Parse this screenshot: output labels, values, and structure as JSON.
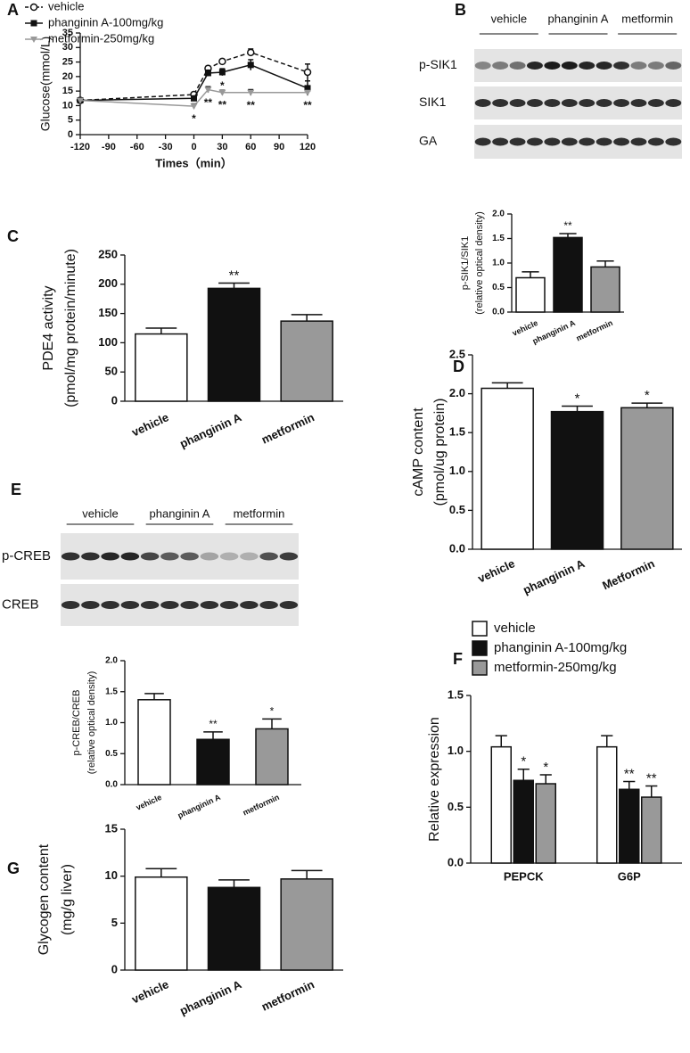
{
  "chart_data": [
    {
      "type": "line",
      "label": "A",
      "ylabel": [
        "Glucose(mmol/L)"
      ],
      "xlabel": "Times（min）",
      "x": [
        -120,
        0,
        15,
        30,
        60,
        120
      ],
      "xlim": [
        -120,
        120
      ],
      "xticks": [
        -120,
        -90,
        -60,
        -30,
        0,
        30,
        60,
        90,
        120
      ],
      "ylim": [
        0,
        35
      ],
      "yticks": [
        0,
        5,
        10,
        15,
        20,
        25,
        30,
        35
      ],
      "series": [
        {
          "name": "vehicle",
          "color": "#111111",
          "marker": "open-circle",
          "dashed": true,
          "values": [
            11.8,
            13.8,
            22.8,
            25.2,
            28.3,
            21.5
          ],
          "errors": [
            0.5,
            0.5,
            0.8,
            0.6,
            1.2,
            2.8
          ],
          "significance": [
            null,
            null,
            null,
            null,
            null,
            null
          ]
        },
        {
          "name": "phanginin A-100mg/kg",
          "color": "#111111",
          "marker": "square",
          "dashed": false,
          "values": [
            11.8,
            12.5,
            21.2,
            21.5,
            24.0,
            16.0
          ],
          "errors": [
            0.5,
            0.5,
            1.0,
            1.2,
            1.8,
            2.5
          ],
          "significance": [
            null,
            null,
            null,
            "*",
            null,
            null
          ]
        },
        {
          "name": "metformin-250mg/kg",
          "color": "#999999",
          "marker": "triangle-down",
          "dashed": false,
          "values": [
            11.8,
            9.8,
            15.5,
            14.5,
            14.5,
            14.5
          ],
          "errors": [
            0.5,
            0.8,
            1.0,
            0.8,
            1.0,
            1.0
          ],
          "significance": [
            null,
            "*",
            "**",
            "**",
            "**",
            "**"
          ]
        }
      ]
    },
    {
      "type": "bar",
      "ylabel": [
        "p-SIK1/SIK1",
        "(relative optical density)"
      ],
      "categories": [
        "vehicle",
        "phanginin A",
        "metformin"
      ],
      "values": [
        0.7,
        1.52,
        0.92
      ],
      "errors": [
        0.12,
        0.08,
        0.12
      ],
      "colors": [
        "#ffffff",
        "#111111",
        "#999999"
      ],
      "significance": [
        null,
        "**",
        null
      ],
      "ylim": [
        0,
        2
      ],
      "yticks": [
        {
          "value": 0,
          "label": "0.0"
        },
        0.5,
        {
          "value": 1,
          "label": "1.0"
        },
        1.5,
        {
          "value": 2,
          "label": "2.0"
        }
      ]
    },
    {
      "type": "bar",
      "label": "C",
      "ylabel": [
        "PDE4 activity",
        "(pmol/mg protein/minute)"
      ],
      "categories": [
        "vehicle",
        "phanginin A",
        "metformin"
      ],
      "values": [
        115,
        193,
        137
      ],
      "errors": [
        10,
        9,
        11
      ],
      "colors": [
        "#ffffff",
        "#111111",
        "#999999"
      ],
      "significance": [
        null,
        "**",
        null
      ],
      "ylim": [
        0,
        250
      ],
      "yticks": [
        0,
        50,
        100,
        150,
        200,
        250
      ]
    },
    {
      "type": "bar",
      "label": "D",
      "ylabel": [
        "cAMP content",
        "(pmol/ug protein)"
      ],
      "categories": [
        "vehicle",
        "phanginin A",
        "Metformin"
      ],
      "values": [
        2.07,
        1.77,
        1.82
      ],
      "errors": [
        0.07,
        0.07,
        0.06
      ],
      "colors": [
        "#ffffff",
        "#111111",
        "#999999"
      ],
      "significance": [
        null,
        "*",
        "*"
      ],
      "ylim": [
        0,
        2.5
      ],
      "yticks": [
        {
          "value": 0,
          "label": "0.0"
        },
        0.5,
        {
          "value": 1,
          "label": "1.0"
        },
        1.5,
        {
          "value": 2,
          "label": "2.0"
        },
        2.5
      ]
    },
    {
      "type": "bar",
      "ylabel": [
        "p-CREB/CREB",
        "(relative optical density)"
      ],
      "categories": [
        "vehicle",
        "phanginin A",
        "metformin"
      ],
      "values": [
        1.37,
        0.73,
        0.9
      ],
      "errors": [
        0.1,
        0.12,
        0.16
      ],
      "colors": [
        "#ffffff",
        "#111111",
        "#999999"
      ],
      "significance": [
        null,
        "**",
        "*"
      ],
      "ylim": [
        0,
        2
      ],
      "yticks": [
        {
          "value": 0,
          "label": "0.0"
        },
        0.5,
        {
          "value": 1,
          "label": "1.0"
        },
        1.5,
        {
          "value": 2,
          "label": "2.0"
        }
      ]
    },
    {
      "type": "bar",
      "label": "F",
      "ylabel": [
        "Relative expression"
      ],
      "categories": [
        "PEPCK",
        "G6P"
      ],
      "series": [
        {
          "name": "vehicle",
          "color": "#ffffff",
          "values": [
            1.04,
            1.04
          ],
          "errors": [
            0.1,
            0.1
          ],
          "significance": [
            null,
            null
          ]
        },
        {
          "name": "phanginin A-100mg/kg",
          "color": "#111111",
          "values": [
            0.74,
            0.66
          ],
          "errors": [
            0.1,
            0.07
          ],
          "significance": [
            "*",
            "**"
          ]
        },
        {
          "name": "metformin-250mg/kg",
          "color": "#999999",
          "values": [
            0.71,
            0.59
          ],
          "errors": [
            0.08,
            0.1
          ],
          "significance": [
            "*",
            "**"
          ]
        }
      ],
      "ylim": [
        0,
        1.5
      ],
      "yticks": [
        {
          "value": 0,
          "label": "0.0"
        },
        0.5,
        {
          "value": 1,
          "label": "1.0"
        },
        1.5
      ]
    },
    {
      "type": "bar",
      "label": "G",
      "ylabel": [
        "Glycogen content",
        "(mg/g liver)"
      ],
      "categories": [
        "vehicle",
        "phanginin A",
        "metformin"
      ],
      "values": [
        9.9,
        8.8,
        9.7
      ],
      "errors": [
        0.9,
        0.8,
        0.9
      ],
      "colors": [
        "#ffffff",
        "#111111",
        "#999999"
      ],
      "significance": [
        null,
        null,
        null
      ],
      "ylim": [
        0,
        15
      ],
      "yticks": [
        0,
        5,
        10,
        15
      ]
    }
  ],
  "blots": [
    {
      "label": "B",
      "groups": [
        "vehicle",
        "phanginin A",
        "metformin"
      ],
      "rows": [
        "p-SIK1",
        "SIK1",
        "GA"
      ]
    },
    {
      "label": "E",
      "groups": [
        "vehicle",
        "phanginin A",
        "metformin"
      ],
      "rows": [
        "p-CREB",
        "CREB"
      ]
    }
  ]
}
